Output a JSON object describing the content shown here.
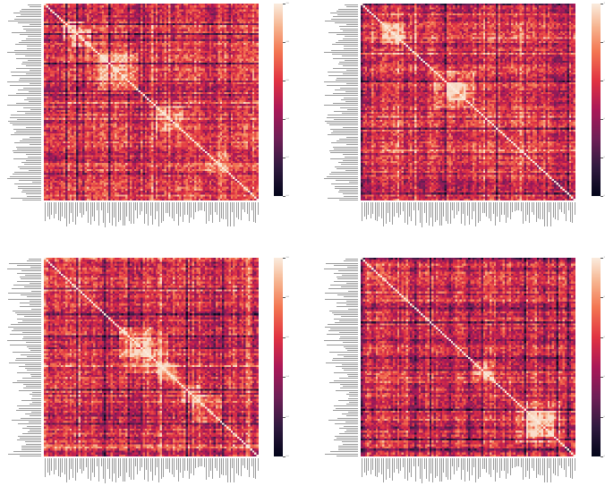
{
  "chart_data": [
    {
      "type": "heatmap",
      "n": 100,
      "seed": 11,
      "colormap": "rocket",
      "vmin": 0.0,
      "vmax": 1.0,
      "diagonal": 1.0,
      "colorbar_ticks": [
        0.0,
        0.2,
        0.4,
        0.6,
        0.8,
        1.0
      ],
      "title": "",
      "xlabel": "",
      "ylabel": ""
    },
    {
      "type": "heatmap",
      "n": 100,
      "seed": 23,
      "colormap": "rocket",
      "vmin": 0.0,
      "vmax": 1.0,
      "diagonal": 1.0,
      "colorbar_ticks": [
        0.0,
        0.2,
        0.4,
        0.6,
        0.8,
        1.0
      ],
      "title": "",
      "xlabel": "",
      "ylabel": ""
    },
    {
      "type": "heatmap",
      "n": 100,
      "seed": 37,
      "colormap": "rocket",
      "vmin": 0.0,
      "vmax": 1.0,
      "diagonal": 1.0,
      "colorbar_ticks": [
        0.0,
        0.2,
        0.4,
        0.6,
        0.8,
        1.0
      ],
      "title": "",
      "xlabel": "",
      "ylabel": ""
    },
    {
      "type": "heatmap",
      "n": 100,
      "seed": 51,
      "colormap": "rocket",
      "vmin": 0.0,
      "vmax": 1.0,
      "diagonal": 1.0,
      "colorbar_ticks": [
        0.0,
        0.2,
        0.4,
        0.6,
        0.8,
        1.0
      ],
      "title": "",
      "xlabel": "",
      "ylabel": ""
    }
  ]
}
